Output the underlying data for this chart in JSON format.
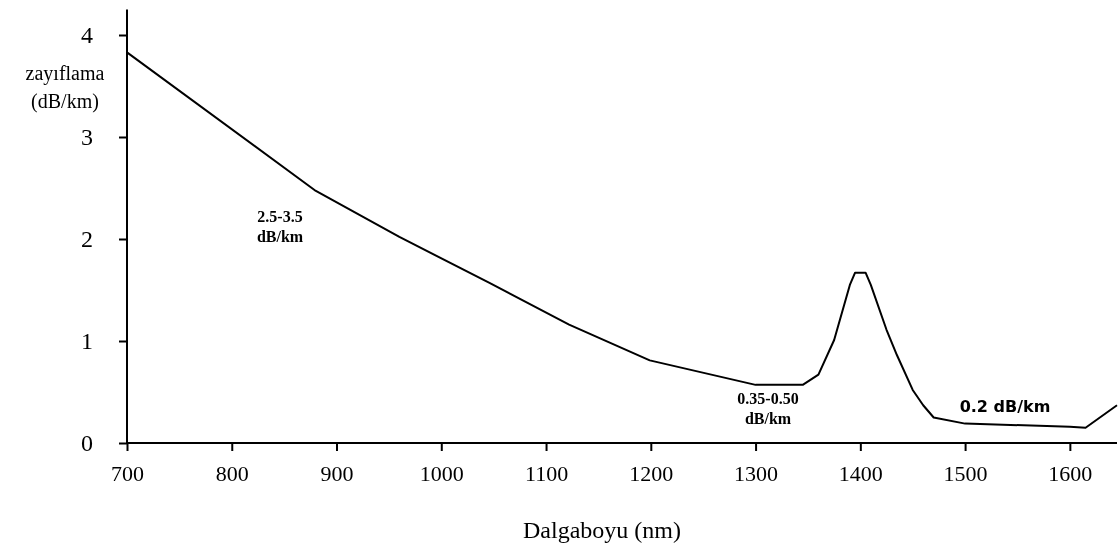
{
  "chart_data": {
    "type": "line",
    "xlabel": "Dalgaboyu (nm)",
    "ylabel": "zayıflama\n(dB/km)",
    "x": [
      700,
      879,
      960,
      1046,
      1122,
      1199,
      1300,
      1345,
      1360,
      1375,
      1390,
      1395,
      1405,
      1410,
      1425,
      1435,
      1450,
      1460,
      1470,
      1500,
      1600,
      1615,
      1645
    ],
    "series": [
      {
        "color": "#000000",
        "values": [
          3.83,
          2.48,
          2.02,
          1.57,
          1.16,
          0.81,
          0.57,
          0.57,
          0.67,
          1.01,
          1.55,
          1.67,
          1.67,
          1.55,
          1.11,
          0.86,
          0.52,
          0.37,
          0.25,
          0.19,
          0.16,
          0.15,
          0.37
        ]
      }
    ],
    "xlim": [
      700,
      1645
    ],
    "ylim": [
      0,
      4.25
    ],
    "xticks": [
      700,
      800,
      900,
      1000,
      1100,
      1200,
      1300,
      1400,
      1500,
      1600
    ],
    "yticks": [
      0,
      1,
      2,
      3,
      4
    ],
    "grid": false,
    "marker": "none",
    "line_style": "solid",
    "annotations": [
      "2.5-3.5\ndB/km",
      "0.35-0.50\ndB/km",
      "0.2 dB/km"
    ]
  }
}
